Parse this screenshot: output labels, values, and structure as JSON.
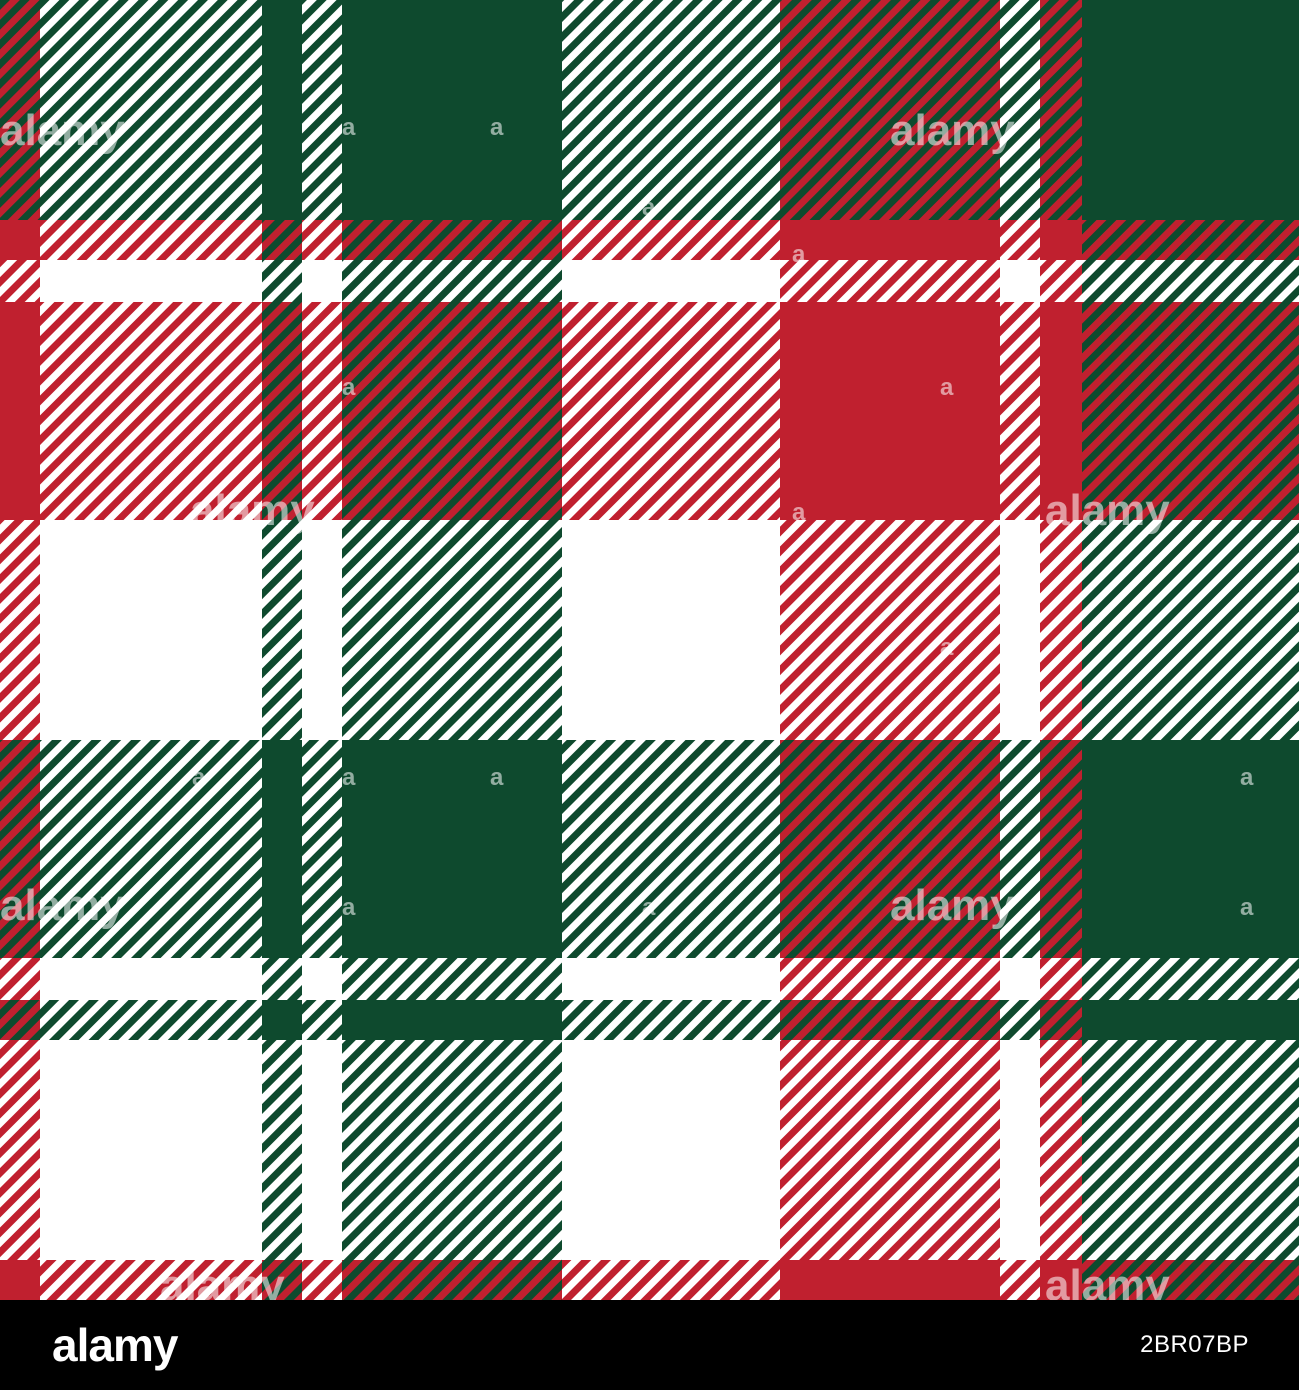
{
  "image": {
    "pattern": "tartan-plaid",
    "colors": {
      "green": "#0e4a2e",
      "red": "#c0202f",
      "white": "#ffffff"
    }
  },
  "watermark": {
    "text": "alamy",
    "mark": "a"
  },
  "footer": {
    "logo": "alamy",
    "image_id": "2BR07BP"
  }
}
